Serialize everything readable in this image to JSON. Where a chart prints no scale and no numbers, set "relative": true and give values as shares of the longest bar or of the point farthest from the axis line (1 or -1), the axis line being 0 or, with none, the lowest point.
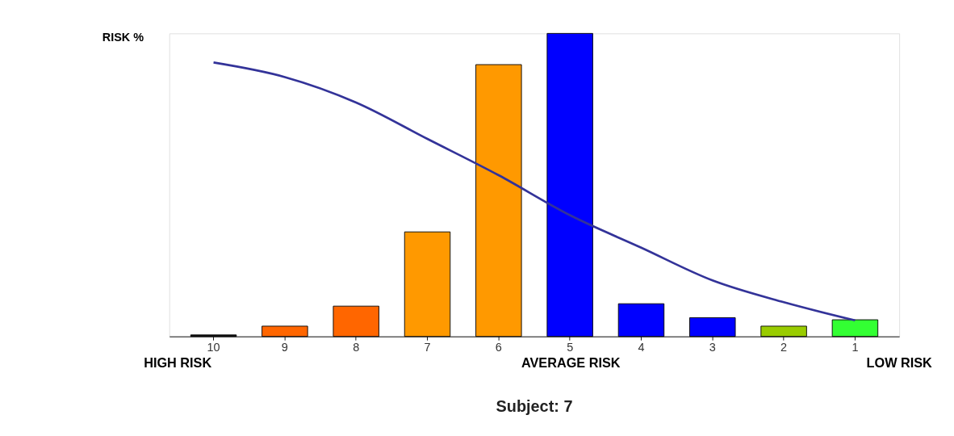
{
  "chart_data": {
    "type": "bar",
    "relative": true,
    "ylabel": "RISK %",
    "title": "Subject: 7",
    "categories": [
      "10",
      "9",
      "8",
      "7",
      "6",
      "5",
      "4",
      "3",
      "2",
      "1"
    ],
    "series": [
      {
        "colors": [
          "#111111",
          "#ff6600",
          "#ff6600",
          "#ff9900",
          "#ff9900",
          "#0000ff",
          "#0000ff",
          "#0000ff",
          "#99cc00",
          "#33ff33"
        ],
        "values": [
          0.005,
          0.034,
          0.1,
          0.345,
          0.897,
          1,
          0.108,
          0.062,
          0.034,
          0.055
        ]
      },
      {
        "type": "line",
        "color": "#333399",
        "values": [
          0.904,
          0.856,
          0.772,
          0.652,
          0.532,
          0.4,
          0.293,
          0.185,
          0.113,
          0.053
        ]
      }
    ],
    "annotations": [
      "HIGH RISK",
      "AVERAGE RISK",
      "LOW RISK"
    ],
    "grid": false
  }
}
